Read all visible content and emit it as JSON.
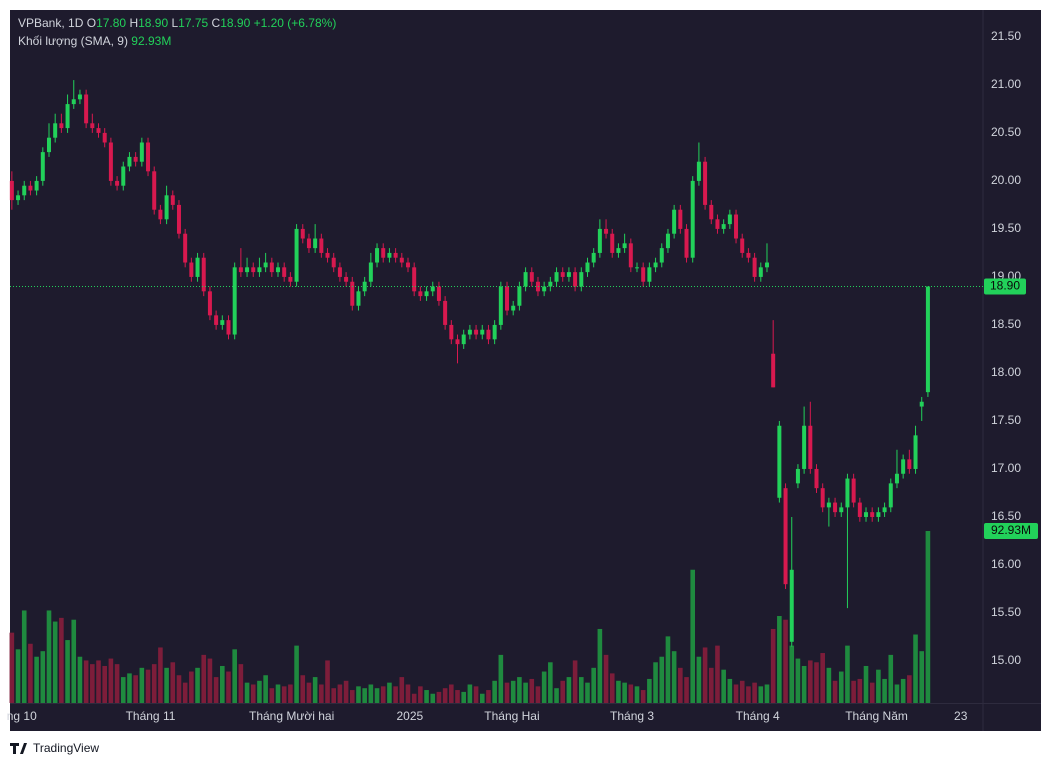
{
  "chart_data": {
    "type": "candlestick",
    "header": {
      "symbol": "VPBank, 1D",
      "o_label": "O",
      "open": "17.80",
      "h_label": "H",
      "high": "18.90",
      "l_label": "L",
      "low": "17.75",
      "c_label": "C",
      "close": "18.90",
      "change": "+1.20 (+6.78%)"
    },
    "volume_legend": {
      "name": "Khối lượng (SMA, 9)",
      "value": "92.93M"
    },
    "last_price_label": "18.90",
    "last_volume_label": "92.93M",
    "footer": "TradingView",
    "up_color": "#22d15a",
    "down_color": "#d8194f",
    "volume_up_color": "#1f8a3f",
    "volume_down_color": "#7d1d3a",
    "open": [
      20.0,
      19.8,
      19.85,
      19.95,
      19.9,
      20.0,
      20.3,
      20.45,
      20.6,
      20.55,
      20.8,
      20.85,
      20.9,
      20.6,
      20.55,
      20.5,
      20.4,
      20.0,
      19.95,
      20.15,
      20.25,
      20.2,
      20.4,
      20.1,
      19.7,
      19.6,
      19.85,
      19.75,
      19.45,
      19.15,
      19.0,
      19.2,
      18.85,
      18.6,
      18.5,
      18.55,
      18.4,
      19.1,
      19.05,
      19.1,
      19.05,
      19.1,
      19.15,
      19.05,
      19.1,
      19.0,
      18.95,
      19.5,
      19.4,
      19.3,
      19.4,
      19.25,
      19.2,
      19.1,
      19.0,
      18.95,
      18.7,
      18.85,
      18.95,
      19.15,
      19.3,
      19.2,
      19.25,
      19.2,
      19.15,
      19.1,
      18.85,
      18.8,
      18.85,
      18.9,
      18.75,
      18.5,
      18.35,
      18.3,
      18.4,
      18.45,
      18.4,
      18.45,
      18.35,
      18.5,
      18.9,
      18.65,
      18.7,
      18.9,
      19.05,
      18.95,
      18.85,
      18.9,
      18.95,
      19.05,
      19.0,
      19.05,
      18.9,
      19.05,
      19.15,
      19.25,
      19.5,
      19.45,
      19.25,
      19.3,
      19.35,
      19.1,
      19.1,
      18.95,
      19.1,
      19.15,
      19.3,
      19.45,
      19.7,
      19.5,
      19.2,
      20.0,
      20.2,
      19.75,
      19.6,
      19.5,
      19.55,
      19.65,
      19.4,
      19.25,
      19.2,
      19.0,
      19.1,
      18.2,
      16.7,
      16.8,
      15.2,
      16.85,
      17.0,
      17.45,
      17.0,
      16.8,
      16.6,
      16.65,
      16.55,
      16.6,
      16.9,
      16.65,
      16.5,
      16.55,
      16.5,
      16.55,
      16.6,
      16.85,
      16.95,
      17.1,
      17.0,
      17.65,
      17.8
    ],
    "high": [
      20.1,
      19.9,
      20.0,
      20.0,
      20.05,
      20.35,
      20.6,
      20.7,
      20.7,
      20.9,
      21.05,
      20.95,
      20.95,
      20.7,
      20.6,
      20.55,
      20.45,
      20.05,
      20.2,
      20.3,
      20.3,
      20.45,
      20.45,
      20.15,
      19.75,
      19.95,
      19.9,
      19.8,
      19.5,
      19.2,
      19.25,
      19.25,
      18.9,
      18.65,
      18.6,
      18.6,
      19.15,
      19.3,
      19.2,
      19.15,
      19.2,
      19.25,
      19.2,
      19.15,
      19.15,
      19.05,
      19.55,
      19.55,
      19.45,
      19.55,
      19.45,
      19.3,
      19.25,
      19.15,
      19.05,
      19.0,
      18.9,
      19.0,
      19.25,
      19.35,
      19.35,
      19.3,
      19.3,
      19.25,
      19.2,
      19.15,
      18.9,
      18.9,
      18.95,
      18.95,
      18.8,
      18.55,
      18.4,
      18.45,
      18.5,
      18.5,
      18.5,
      18.5,
      18.55,
      18.95,
      18.95,
      18.75,
      18.95,
      19.1,
      19.1,
      19.0,
      18.95,
      19.0,
      19.1,
      19.1,
      19.1,
      19.1,
      19.1,
      19.2,
      19.3,
      19.6,
      19.6,
      19.5,
      19.35,
      19.45,
      19.4,
      19.15,
      19.15,
      19.15,
      19.2,
      19.35,
      19.5,
      19.75,
      19.75,
      19.55,
      20.05,
      20.4,
      20.25,
      19.8,
      19.65,
      19.6,
      19.7,
      19.7,
      19.45,
      19.3,
      19.25,
      19.15,
      19.35,
      18.55,
      17.5,
      16.85,
      16.5,
      17.05,
      17.65,
      17.7,
      17.05,
      16.85,
      16.7,
      16.7,
      16.65,
      16.95,
      16.95,
      16.7,
      16.6,
      16.6,
      16.6,
      16.65,
      16.9,
      17.2,
      17.15,
      17.2,
      17.45,
      17.75,
      18.9
    ],
    "low": [
      19.7,
      19.75,
      19.8,
      19.85,
      19.85,
      19.95,
      20.25,
      20.4,
      20.5,
      20.5,
      20.75,
      20.8,
      20.55,
      20.5,
      20.45,
      20.35,
      19.95,
      19.9,
      19.9,
      20.1,
      20.15,
      20.15,
      20.05,
      19.65,
      19.55,
      19.55,
      19.7,
      19.4,
      19.1,
      18.95,
      18.95,
      18.8,
      18.55,
      18.45,
      18.45,
      18.35,
      18.35,
      19.0,
      19.0,
      19.0,
      19.0,
      19.05,
      19.0,
      19.0,
      18.95,
      18.9,
      18.9,
      19.35,
      19.25,
      19.25,
      19.2,
      19.15,
      19.05,
      18.95,
      18.9,
      18.65,
      18.65,
      18.8,
      18.9,
      19.1,
      19.15,
      19.15,
      19.15,
      19.1,
      19.05,
      18.8,
      18.75,
      18.75,
      18.8,
      18.7,
      18.45,
      18.3,
      18.1,
      18.25,
      18.35,
      18.35,
      18.35,
      18.3,
      18.3,
      18.45,
      18.6,
      18.6,
      18.65,
      18.85,
      18.9,
      18.8,
      18.8,
      18.85,
      18.9,
      18.95,
      18.95,
      18.85,
      18.85,
      19.0,
      19.1,
      19.2,
      19.4,
      19.2,
      19.2,
      19.25,
      19.05,
      19.05,
      18.9,
      18.9,
      19.05,
      19.1,
      19.25,
      19.4,
      19.45,
      19.15,
      19.15,
      19.95,
      19.7,
      19.55,
      19.45,
      19.45,
      19.5,
      19.35,
      19.2,
      19.15,
      18.95,
      18.95,
      19.05,
      17.85,
      16.65,
      15.75,
      15.15,
      16.8,
      16.95,
      16.95,
      16.75,
      16.55,
      16.4,
      16.5,
      16.5,
      15.55,
      16.6,
      16.45,
      16.45,
      16.45,
      16.45,
      16.5,
      16.55,
      16.8,
      16.9,
      16.95,
      16.95,
      17.5,
      17.75
    ],
    "close": [
      19.8,
      19.85,
      19.95,
      19.9,
      20.0,
      20.3,
      20.45,
      20.6,
      20.55,
      20.8,
      20.85,
      20.9,
      20.6,
      20.55,
      20.5,
      20.4,
      20.0,
      19.95,
      20.15,
      20.25,
      20.2,
      20.4,
      20.1,
      19.7,
      19.6,
      19.85,
      19.75,
      19.45,
      19.15,
      19.0,
      19.2,
      18.85,
      18.6,
      18.5,
      18.55,
      18.4,
      19.1,
      19.05,
      19.1,
      19.05,
      19.1,
      19.15,
      19.05,
      19.1,
      19.0,
      18.95,
      19.5,
      19.4,
      19.3,
      19.4,
      19.25,
      19.2,
      19.1,
      19.0,
      18.95,
      18.7,
      18.85,
      18.95,
      19.15,
      19.3,
      19.2,
      19.25,
      19.2,
      19.15,
      19.1,
      18.85,
      18.8,
      18.85,
      18.9,
      18.75,
      18.5,
      18.35,
      18.3,
      18.4,
      18.45,
      18.4,
      18.45,
      18.35,
      18.5,
      18.9,
      18.65,
      18.7,
      18.9,
      19.05,
      18.95,
      18.85,
      18.9,
      18.95,
      19.05,
      19.0,
      19.05,
      18.9,
      19.05,
      19.15,
      19.25,
      19.5,
      19.45,
      19.25,
      19.3,
      19.35,
      19.1,
      19.1,
      18.95,
      19.1,
      19.15,
      19.3,
      19.45,
      19.7,
      19.5,
      19.2,
      20.0,
      20.2,
      19.75,
      19.6,
      19.5,
      19.55,
      19.65,
      19.4,
      19.25,
      19.2,
      19.0,
      19.1,
      19.15,
      17.85,
      17.45,
      15.8,
      15.95,
      17.0,
      17.45,
      17.0,
      16.8,
      16.6,
      16.65,
      16.55,
      16.6,
      16.9,
      16.65,
      16.5,
      16.55,
      16.5,
      16.55,
      16.6,
      16.85,
      16.95,
      17.1,
      17.0,
      17.35,
      17.7,
      18.9
    ],
    "volume": [
      38,
      29,
      50,
      32,
      25,
      28,
      50,
      44,
      46,
      34,
      45,
      25,
      23,
      21,
      23,
      20,
      24,
      21,
      14,
      16,
      15,
      19,
      18,
      21,
      30,
      19,
      22,
      15,
      11,
      17,
      19,
      26,
      24,
      14,
      20,
      17,
      29,
      21,
      11,
      10,
      12,
      15,
      8,
      10,
      9,
      10,
      31,
      15,
      11,
      14,
      10,
      23,
      8,
      10,
      12,
      7,
      9,
      8,
      10,
      8,
      9,
      11,
      9,
      14,
      10,
      5,
      9,
      7,
      5,
      6,
      8,
      10,
      7,
      6,
      10,
      9,
      5,
      7,
      12,
      26,
      11,
      12,
      14,
      11,
      13,
      9,
      17,
      22,
      8,
      12,
      14,
      23,
      14,
      11,
      19,
      40,
      26,
      16,
      12,
      11,
      10,
      9,
      7,
      13,
      22,
      25,
      36,
      28,
      19,
      14,
      72,
      25,
      30,
      19,
      31,
      18,
      13,
      10,
      12,
      9,
      11,
      9,
      10,
      40,
      47,
      45,
      31,
      24,
      20,
      23,
      22,
      27,
      19,
      12,
      17,
      31,
      12,
      13,
      20,
      11,
      18,
      13,
      26,
      10,
      13,
      15,
      37,
      28,
      92.93
    ],
    "xlim": [
      -0.3,
      156.9
    ],
    "xticks": [
      {
        "value": 1.6,
        "label": "ng 10"
      },
      {
        "value": 22.4,
        "label": "Tháng 11"
      },
      {
        "value": 45.2,
        "label": "Tháng Mười hai"
      },
      {
        "value": 64.3,
        "label": "2025"
      },
      {
        "value": 80.8,
        "label": "Tháng Hai"
      },
      {
        "value": 100.2,
        "label": "Tháng 3"
      },
      {
        "value": 120.5,
        "label": "Tháng 4"
      },
      {
        "value": 139.7,
        "label": "Tháng Năm"
      },
      {
        "value": 153.3,
        "label": "23"
      }
    ],
    "ylim": [
      14.5625,
      21.78
    ],
    "yticks": [
      {
        "value": 15,
        "label": "15.00"
      },
      {
        "value": 15.5,
        "label": "15.50"
      },
      {
        "value": 16,
        "label": "16.00"
      },
      {
        "value": 16.5,
        "label": "16.50"
      },
      {
        "value": 17,
        "label": "17.00"
      },
      {
        "value": 17.5,
        "label": "17.50"
      },
      {
        "value": 18,
        "label": "18.00"
      },
      {
        "value": 18.5,
        "label": "18.50"
      },
      {
        "value": 19,
        "label": "19.00"
      },
      {
        "value": 19.5,
        "label": "19.50"
      },
      {
        "value": 20,
        "label": "20.00"
      },
      {
        "value": 20.5,
        "label": "20.50"
      },
      {
        "value": 21,
        "label": "21.00"
      },
      {
        "value": 21.5,
        "label": "21.50"
      }
    ],
    "grid": false
  }
}
